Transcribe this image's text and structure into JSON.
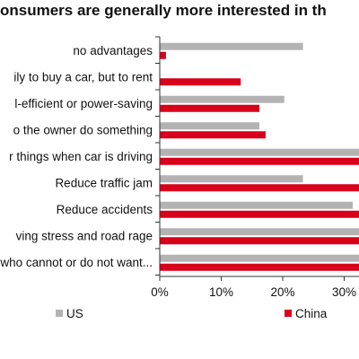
{
  "chart_data": {
    "type": "bar",
    "orientation": "horizontal",
    "title": "onsumers are generally more interested in th",
    "categories": [
      "no advantages",
      "ily to buy a car, but to rent",
      "l-efficient or power-saving",
      "o the owner do something",
      "r things when car is driving",
      "Reduce traffic jam",
      "Reduce accidents",
      "ving stress and road rage",
      "who cannot or do not want..."
    ],
    "series": [
      {
        "name": "US",
        "color": "#b3b3b3",
        "values": [
          23,
          0,
          20,
          16,
          32,
          23,
          31,
          32,
          32
        ]
      },
      {
        "name": "China",
        "color": "#d9001b",
        "values": [
          1,
          13,
          16,
          17,
          32,
          33,
          33,
          33,
          33
        ]
      }
    ],
    "xlim": [
      0,
      32
    ],
    "xticks": [
      "0%",
      "10%",
      "20%",
      "30%"
    ],
    "legend_position": "bottom",
    "grid": false
  }
}
